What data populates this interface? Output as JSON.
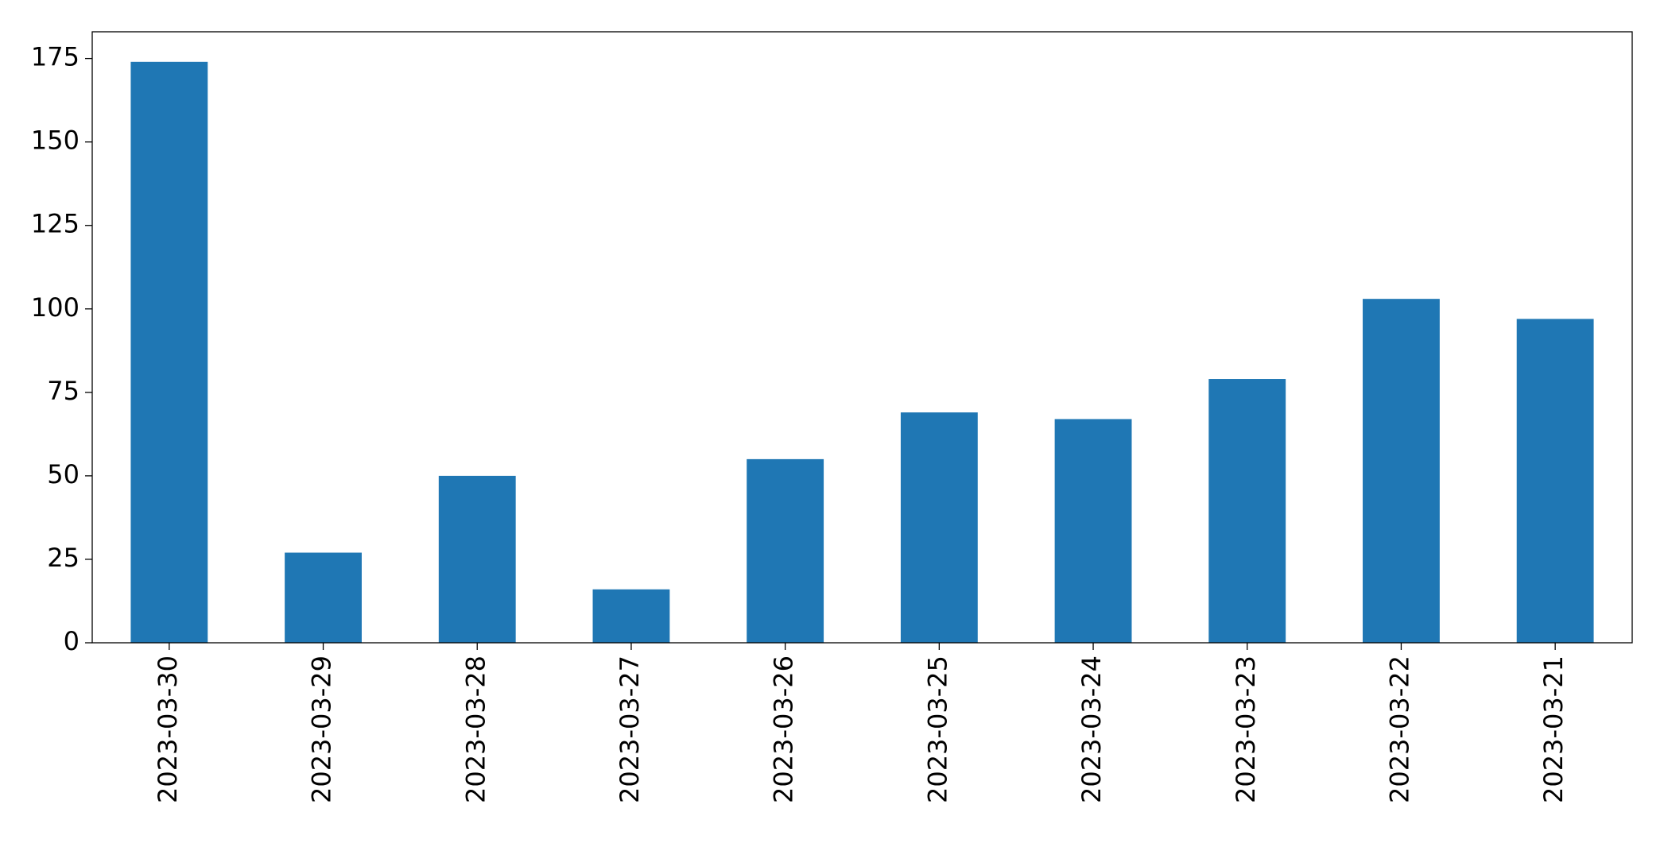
{
  "chart_data": {
    "type": "bar",
    "categories": [
      "2023-03-30",
      "2023-03-29",
      "2023-03-28",
      "2023-03-27",
      "2023-03-26",
      "2023-03-25",
      "2023-03-24",
      "2023-03-23",
      "2023-03-22",
      "2023-03-21"
    ],
    "values": [
      174,
      27,
      50,
      16,
      55,
      69,
      67,
      79,
      103,
      97
    ],
    "color": "#1f77b4",
    "ylim": [
      0,
      183
    ],
    "yticks": [
      0,
      25,
      50,
      75,
      100,
      125,
      150,
      175
    ],
    "grid": false
  }
}
